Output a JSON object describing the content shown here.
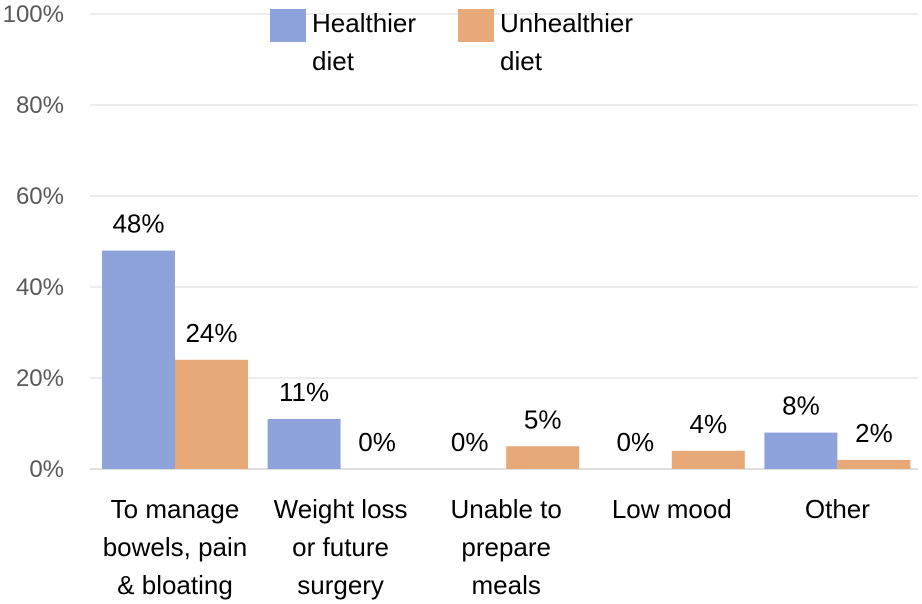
{
  "chart_data": {
    "type": "bar",
    "title": "",
    "xlabel": "",
    "ylabel": "",
    "ylim": [
      0,
      100
    ],
    "yticks": [
      "0%",
      "20%",
      "40%",
      "60%",
      "80%",
      "100%"
    ],
    "grid": true,
    "legend_position": "top",
    "categories": [
      [
        "To manage",
        "bowels, pain",
        "& bloating"
      ],
      [
        "Weight loss",
        "or future",
        "surgery"
      ],
      [
        "Unable to",
        "prepare",
        "meals"
      ],
      [
        "Low mood"
      ],
      [
        "Other"
      ]
    ],
    "series": [
      {
        "name": [
          "Healthier",
          "diet"
        ],
        "color": "#8EA3DB",
        "values": [
          48,
          11,
          0,
          0,
          8
        ],
        "labels": [
          "48%",
          "11%",
          "0%",
          "0%",
          "8%"
        ]
      },
      {
        "name": [
          "Unhealthier",
          "diet"
        ],
        "color": "#E8A978",
        "values": [
          24,
          0,
          5,
          4,
          2
        ],
        "labels": [
          "24%",
          "0%",
          "5%",
          "4%",
          "2%"
        ]
      }
    ]
  }
}
